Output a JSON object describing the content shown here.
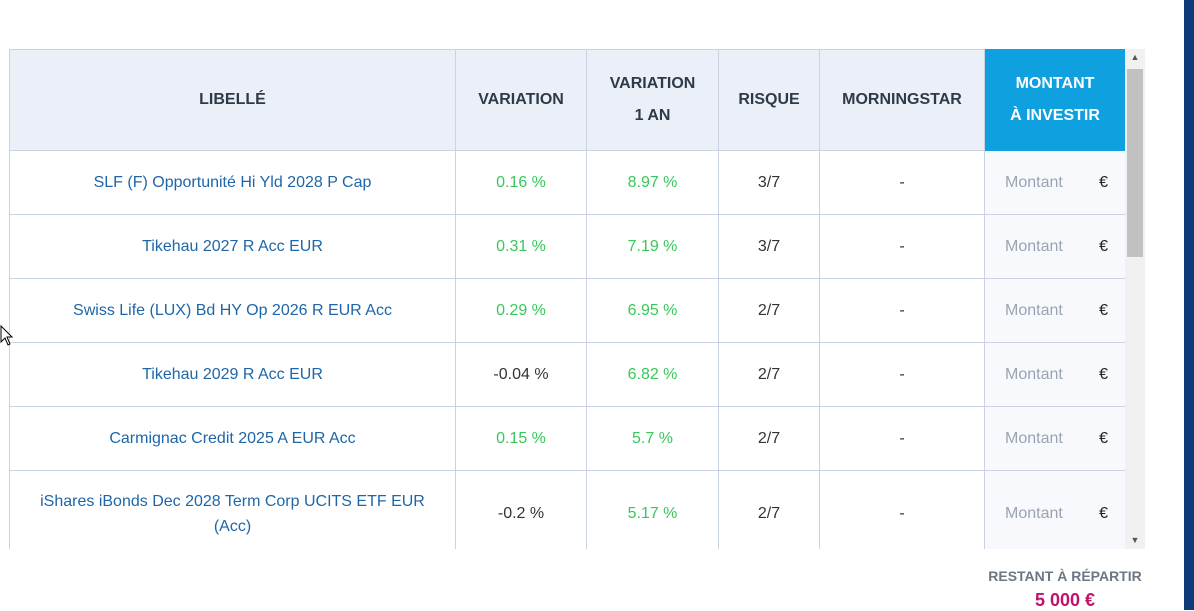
{
  "table": {
    "headers": {
      "libelle": "LIBELLÉ",
      "variation": "VARIATION",
      "variation_1an_line1": "VARIATION",
      "variation_1an_line2": "1 AN",
      "risque": "RISQUE",
      "morningstar": "MORNINGSTAR",
      "montant_line1": "MONTANT",
      "montant_line2": "À INVESTIR"
    },
    "rows": [
      {
        "name": "SLF (F) Opportunité Hi Yld 2028 P Cap",
        "variation": "0.16 %",
        "variation_1an": "8.97 %",
        "risque": "3/7",
        "morningstar": "-"
      },
      {
        "name": "Tikehau 2027 R Acc EUR",
        "variation": "0.31 %",
        "variation_1an": "7.19 %",
        "risque": "3/7",
        "morningstar": "-"
      },
      {
        "name": "Swiss Life (LUX) Bd HY Op 2026 R EUR Acc",
        "variation": "0.29 %",
        "variation_1an": "6.95 %",
        "risque": "2/7",
        "morningstar": "-"
      },
      {
        "name": "Tikehau 2029 R Acc EUR",
        "variation": "-0.04 %",
        "variation_1an": "6.82 %",
        "risque": "2/7",
        "morningstar": "-"
      },
      {
        "name": "Carmignac Credit 2025 A EUR Acc",
        "variation": "0.15 %",
        "variation_1an": "5.7 %",
        "risque": "2/7",
        "morningstar": "-"
      },
      {
        "name": "iShares iBonds Dec 2028 Term Corp UCITS ETF EUR (Acc)",
        "variation": "-0.2 %",
        "variation_1an": "5.17 %",
        "risque": "2/7",
        "morningstar": "-"
      }
    ],
    "amount_placeholder": "Montant",
    "currency": "€"
  },
  "footer": {
    "restant_label": "RESTANT À RÉPARTIR",
    "restant_value": "5 000 €"
  },
  "colors": {
    "header_bg": "#ebf0f8",
    "accent_header": "#0fa0e0",
    "link": "#1e66a8",
    "positive": "#38c75a",
    "remaining_value": "#c0136b"
  }
}
